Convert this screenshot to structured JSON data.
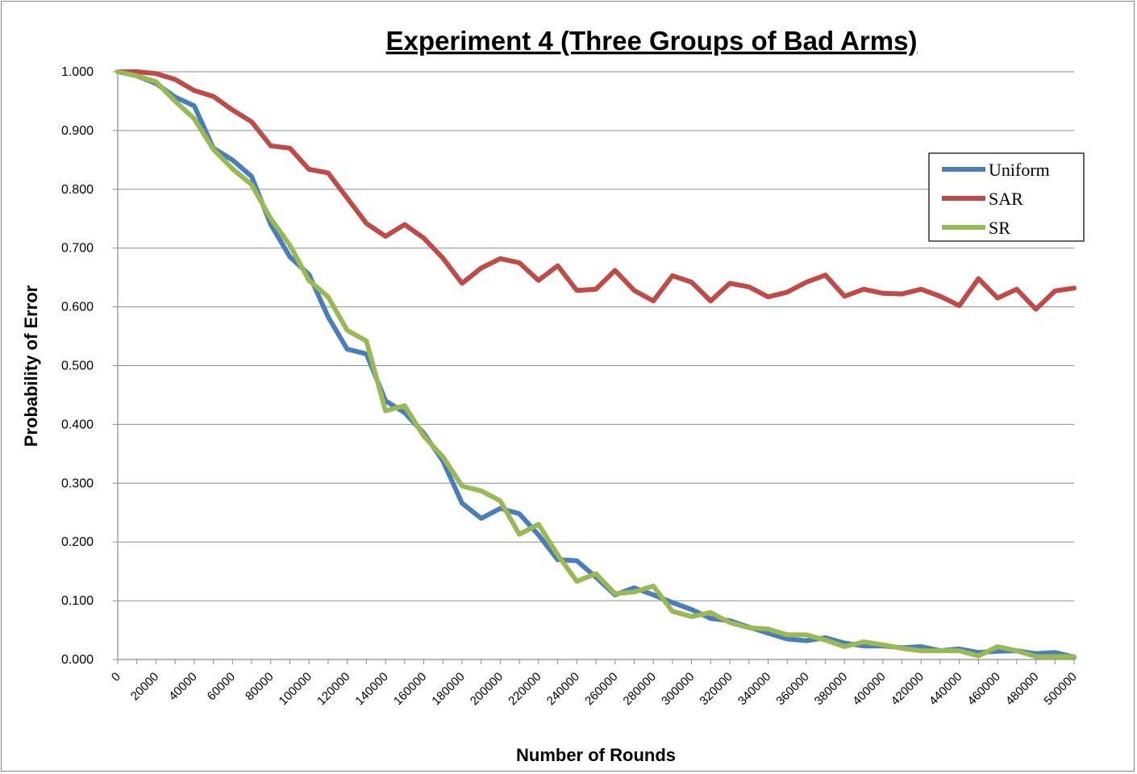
{
  "chart_data": {
    "type": "line",
    "title": "Experiment 4 (Three Groups of Bad Arms)",
    "xlabel": "Number of Rounds",
    "ylabel": "Probability of Error",
    "x": [
      0,
      10000,
      20000,
      30000,
      40000,
      50000,
      60000,
      70000,
      80000,
      90000,
      100000,
      110000,
      120000,
      130000,
      140000,
      150000,
      160000,
      170000,
      180000,
      190000,
      200000,
      210000,
      220000,
      230000,
      240000,
      250000,
      260000,
      270000,
      280000,
      290000,
      300000,
      310000,
      320000,
      330000,
      340000,
      350000,
      360000,
      370000,
      380000,
      390000,
      400000,
      410000,
      420000,
      430000,
      440000,
      450000,
      460000,
      470000,
      480000,
      490000,
      500000
    ],
    "xtick_labels": [
      "0",
      "20000",
      "40000",
      "60000",
      "80000",
      "100000",
      "120000",
      "140000",
      "160000",
      "180000",
      "200000",
      "220000",
      "240000",
      "260000",
      "280000",
      "300000",
      "320000",
      "340000",
      "360000",
      "380000",
      "400000",
      "420000",
      "440000",
      "460000",
      "480000",
      "500000"
    ],
    "ytick_labels": [
      "0.000",
      "0.100",
      "0.200",
      "0.300",
      "0.400",
      "0.500",
      "0.600",
      "0.700",
      "0.800",
      "0.900",
      "1.000"
    ],
    "ylim": [
      0,
      1
    ],
    "grid": true,
    "legend_position": "right",
    "series": [
      {
        "name": "Uniform",
        "color": "#4a7ebb",
        "values": [
          1.0,
          0.993,
          0.98,
          0.957,
          0.942,
          0.87,
          0.85,
          0.822,
          0.74,
          0.685,
          0.655,
          0.583,
          0.528,
          0.52,
          0.44,
          0.42,
          0.385,
          0.338,
          0.266,
          0.24,
          0.257,
          0.248,
          0.212,
          0.17,
          0.168,
          0.14,
          0.11,
          0.122,
          0.11,
          0.097,
          0.085,
          0.07,
          0.066,
          0.055,
          0.045,
          0.035,
          0.032,
          0.037,
          0.028,
          0.023,
          0.023,
          0.02,
          0.022,
          0.015,
          0.018,
          0.012,
          0.014,
          0.015,
          0.01,
          0.012,
          0.004
        ]
      },
      {
        "name": "SAR",
        "color": "#be4b48",
        "values": [
          1.0,
          1.0,
          0.997,
          0.987,
          0.968,
          0.958,
          0.935,
          0.915,
          0.874,
          0.87,
          0.834,
          0.828,
          0.785,
          0.742,
          0.72,
          0.74,
          0.717,
          0.683,
          0.64,
          0.666,
          0.682,
          0.675,
          0.645,
          0.67,
          0.628,
          0.63,
          0.662,
          0.628,
          0.61,
          0.653,
          0.642,
          0.61,
          0.64,
          0.634,
          0.617,
          0.625,
          0.642,
          0.654,
          0.618,
          0.63,
          0.623,
          0.622,
          0.63,
          0.618,
          0.602,
          0.648,
          0.615,
          0.63,
          0.596,
          0.627,
          0.632
        ]
      },
      {
        "name": "SR",
        "color": "#98b954",
        "values": [
          1.0,
          0.993,
          0.983,
          0.95,
          0.92,
          0.868,
          0.835,
          0.808,
          0.75,
          0.705,
          0.645,
          0.617,
          0.56,
          0.542,
          0.423,
          0.432,
          0.38,
          0.345,
          0.295,
          0.287,
          0.27,
          0.213,
          0.23,
          0.178,
          0.133,
          0.146,
          0.112,
          0.115,
          0.125,
          0.082,
          0.073,
          0.08,
          0.063,
          0.054,
          0.052,
          0.042,
          0.042,
          0.033,
          0.022,
          0.03,
          0.025,
          0.019,
          0.015,
          0.015,
          0.015,
          0.006,
          0.022,
          0.015,
          0.005,
          0.005,
          0.005
        ]
      }
    ]
  }
}
